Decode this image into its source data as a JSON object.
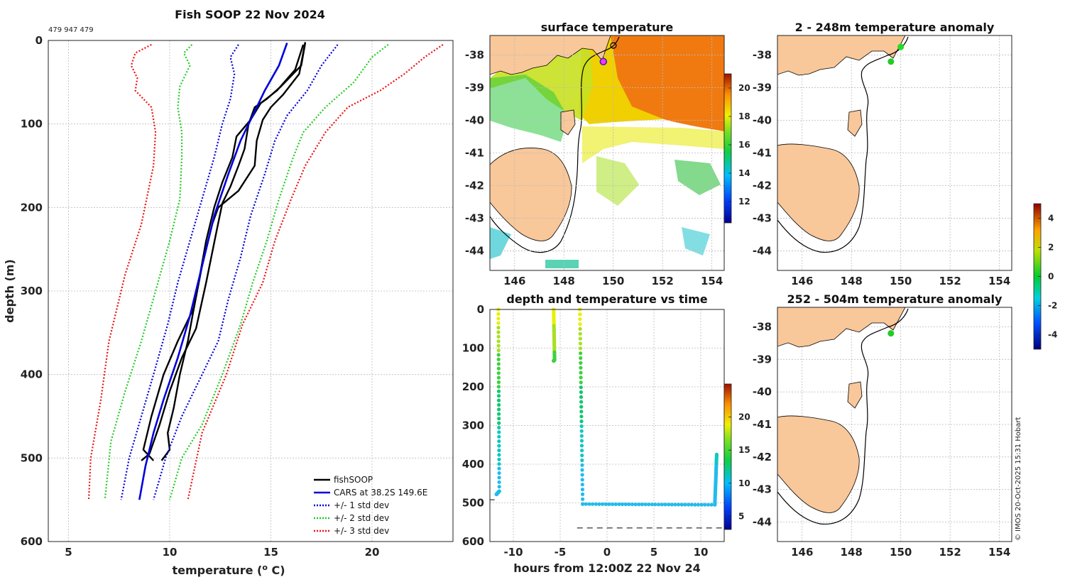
{
  "main_title": "Fish SOOP 22 Nov 2024",
  "id_text": "479 947 479",
  "credit": "© IMOS 20-Oct-2025 15:31 Hobart",
  "colors": {
    "fishsoop": "#000000",
    "cars": "#0000dd",
    "std1": "#0000dd",
    "std2": "#22cc22",
    "std3": "#ee1111",
    "land": "#f8c79a"
  },
  "chart_data": [
    {
      "id": "profile",
      "type": "line",
      "title": "Fish SOOP 22 Nov 2024",
      "xlabel": "temperature (",
      "xlabel_sup": "o",
      "xlabel_tail": " C)",
      "ylabel": "depth (m)",
      "xlim": [
        4,
        24
      ],
      "ylim": [
        0,
        600
      ],
      "xticks": [
        "5",
        "10",
        "15",
        "20"
      ],
      "xtick_values": [
        5,
        10,
        15,
        20
      ],
      "yticks": [
        "0",
        "100",
        "200",
        "300",
        "400",
        "500",
        "600"
      ],
      "ytick_values": [
        0,
        100,
        200,
        300,
        400,
        500,
        600
      ],
      "legend": [
        "fishSOOP",
        "CARS at 38.2S 149.6E",
        "+/- 1 std dev",
        "+/- 2 std dev",
        "+/- 3 std dev"
      ],
      "series": [
        {
          "name": "fishSOOP",
          "casts": [
            [
              [
                16.7,
                3
              ],
              [
                16.5,
                30
              ],
              [
                15.5,
                55
              ],
              [
                14.8,
                70
              ],
              [
                14.2,
                80
              ],
              [
                13.9,
                100
              ],
              [
                13.7,
                130
              ],
              [
                13.4,
                150
              ],
              [
                13.0,
                175
              ],
              [
                12.6,
                195
              ],
              [
                12.3,
                230
              ],
              [
                11.8,
                290
              ],
              [
                11.3,
                345
              ],
              [
                10.6,
                380
              ],
              [
                10.0,
                420
              ],
              [
                9.5,
                460
              ],
              [
                9.0,
                495
              ],
              [
                8.6,
                503
              ]
            ],
            [
              [
                16.6,
                5
              ],
              [
                16.2,
                35
              ],
              [
                15.3,
                60
              ],
              [
                14.5,
                75
              ],
              [
                14.0,
                95
              ],
              [
                13.3,
                115
              ],
              [
                13.1,
                140
              ],
              [
                12.6,
                170
              ],
              [
                12.2,
                200
              ],
              [
                11.8,
                240
              ],
              [
                11.5,
                280
              ],
              [
                11.2,
                320
              ],
              [
                10.4,
                360
              ],
              [
                9.7,
                400
              ],
              [
                9.1,
                450
              ],
              [
                8.7,
                490
              ],
              [
                9.2,
                503
              ]
            ],
            [
              [
                16.7,
                2
              ],
              [
                16.4,
                40
              ],
              [
                15.6,
                65
              ],
              [
                15.0,
                80
              ],
              [
                14.6,
                95
              ],
              [
                14.3,
                120
              ],
              [
                14.2,
                150
              ],
              [
                13.4,
                180
              ],
              [
                12.4,
                200
              ],
              [
                12.1,
                220
              ],
              [
                11.6,
                270
              ],
              [
                11.2,
                320
              ],
              [
                10.9,
                360
              ],
              [
                10.5,
                400
              ],
              [
                10.2,
                440
              ],
              [
                9.9,
                470
              ],
              [
                10.0,
                490
              ],
              [
                9.6,
                503
              ]
            ]
          ]
        },
        {
          "name": "CARS at 38.2S 149.6E",
          "x": [
            15.8,
            15.4,
            14.7,
            14.1,
            13.5,
            12.9,
            12.2,
            11.6,
            11.0,
            10.4,
            9.7,
            9.2,
            8.8,
            8.5
          ],
          "y": [
            3,
            30,
            60,
            90,
            120,
            160,
            210,
            270,
            330,
            380,
            430,
            470,
            510,
            550
          ]
        },
        {
          "name": "+/- 1 std dev low",
          "x": [
            13.4,
            13.0,
            13.2,
            13.0,
            12.6,
            12.2,
            11.6,
            11.0,
            10.4,
            9.9,
            9.2,
            8.6,
            8.0,
            7.6
          ],
          "y": [
            5,
            20,
            40,
            70,
            100,
            140,
            190,
            240,
            290,
            340,
            400,
            450,
            500,
            550
          ]
        },
        {
          "name": "+/- 1 std dev high",
          "x": [
            18.3,
            17.5,
            16.8,
            15.8,
            15.2,
            14.7,
            14.0,
            13.5,
            12.9,
            12.4,
            11.6,
            10.6,
            9.8,
            9.2
          ],
          "y": [
            5,
            30,
            60,
            90,
            120,
            160,
            210,
            260,
            310,
            360,
            400,
            450,
            500,
            550
          ]
        },
        {
          "name": "+/- 2 std dev low",
          "x": [
            11.1,
            10.7,
            11.0,
            10.5,
            10.4,
            10.6,
            10.6,
            10.5,
            10.0,
            9.3,
            8.6,
            7.8,
            7.1,
            6.8
          ],
          "y": [
            5,
            15,
            30,
            55,
            80,
            110,
            140,
            190,
            240,
            300,
            360,
            420,
            480,
            550
          ]
        },
        {
          "name": "+/- 2 std dev high",
          "x": [
            20.8,
            20.0,
            19.1,
            17.7,
            16.6,
            16.1,
            15.4,
            14.8,
            14.1,
            13.5,
            12.6,
            11.6,
            10.6,
            10.0
          ],
          "y": [
            5,
            20,
            50,
            80,
            110,
            140,
            190,
            240,
            290,
            340,
            400,
            460,
            500,
            550
          ]
        },
        {
          "name": "+/- 3 std dev low",
          "x": [
            9.1,
            8.3,
            8.1,
            8.4,
            8.3,
            9.1,
            9.3,
            9.2,
            8.6,
            7.8,
            7.0,
            6.6,
            6.1,
            6.0
          ],
          "y": [
            5,
            15,
            30,
            45,
            60,
            80,
            110,
            150,
            220,
            280,
            360,
            430,
            500,
            550
          ]
        },
        {
          "name": "+/- 3 std dev high",
          "x": [
            23.5,
            22.6,
            21.6,
            20.4,
            18.8,
            17.7,
            16.7,
            16.0,
            15.2,
            14.6,
            13.6,
            12.8,
            11.6,
            10.9
          ],
          "y": [
            5,
            20,
            40,
            60,
            80,
            110,
            150,
            190,
            240,
            290,
            340,
            400,
            470,
            550
          ]
        }
      ]
    },
    {
      "id": "surface_temperature",
      "type": "heatmap",
      "title": "surface temperature",
      "xlim": [
        145,
        154.5
      ],
      "ylim": [
        -44.6,
        -37.4
      ],
      "xticks": [
        "146",
        "148",
        "150",
        "152",
        "154"
      ],
      "yticks": [
        "-38",
        "-39",
        "-40",
        "-41",
        "-42",
        "-43",
        "-44"
      ],
      "colorbar_ticks": [
        "12",
        "14",
        "16",
        "18",
        "20"
      ],
      "colorbar_range": [
        10.5,
        21
      ],
      "cast_position": {
        "lon": 149.6,
        "lat": -38.2
      }
    },
    {
      "id": "depth_vs_time",
      "type": "scatter",
      "title": "depth and temperature vs time",
      "xlabel": "hours from 12:00Z 22 Nov 24",
      "xlim": [
        -12.5,
        12.5
      ],
      "ylim": [
        0,
        600
      ],
      "xticks": [
        "-10",
        "-5",
        "0",
        "5",
        "10"
      ],
      "yticks": [
        "0",
        "100",
        "200",
        "300",
        "400",
        "500",
        "600"
      ],
      "colorbar_ticks": [
        "5",
        "10",
        "15",
        "20"
      ],
      "colorbar_range": [
        3,
        25
      ],
      "bottom_depth": 565,
      "series": [
        {
          "name": "cast 1",
          "x": [
            -11.6,
            -11.5,
            -11.8
          ],
          "y": [
            0,
            470,
            478
          ]
        },
        {
          "name": "cast 2",
          "x": [
            -5.7,
            -5.6,
            -5.7
          ],
          "y": [
            0,
            130,
            133
          ]
        },
        {
          "name": "cast 3",
          "x": [
            -2.9,
            -2.6,
            11.5,
            11.7
          ],
          "y": [
            0,
            503,
            505,
            375
          ]
        }
      ]
    },
    {
      "id": "anomaly_2_248",
      "type": "map",
      "title": "2 - 248m temperature anomaly",
      "xlim": [
        145,
        154.5
      ],
      "ylim": [
        -44.6,
        -37.4
      ],
      "xticks": [
        "146",
        "148",
        "150",
        "152",
        "154"
      ],
      "yticks": [
        "-38",
        "-39",
        "-40",
        "-41",
        "-42",
        "-43",
        "-44"
      ],
      "points": [
        {
          "lon": 150.0,
          "lat": -37.75
        },
        {
          "lon": 149.6,
          "lat": -38.2
        }
      ]
    },
    {
      "id": "anomaly_252_504",
      "type": "map",
      "title": "252 - 504m temperature anomaly",
      "xlim": [
        145,
        154.5
      ],
      "ylim": [
        -44.6,
        -37.4
      ],
      "xticks": [
        "146",
        "148",
        "150",
        "152",
        "154"
      ],
      "yticks": [
        "-38",
        "-39",
        "-40",
        "-41",
        "-42",
        "-43",
        "-44"
      ],
      "points": [
        {
          "lon": 149.6,
          "lat": -38.2
        }
      ],
      "colorbar_ticks": [
        "-4",
        "-2",
        "0",
        "2",
        "4"
      ],
      "colorbar_range": [
        -5,
        5
      ]
    }
  ]
}
